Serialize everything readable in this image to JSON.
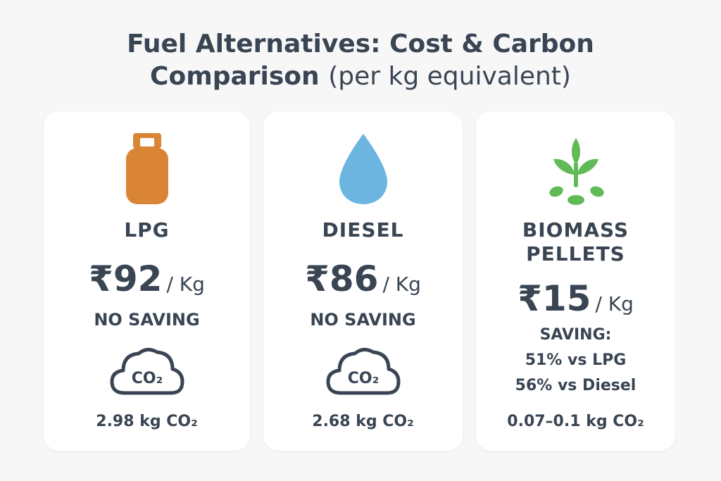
{
  "title": {
    "line1": "Fuel Alternatives: Cost & Carbon",
    "line2_bold": "Comparison",
    "line2_light": "(per kg equivalent)"
  },
  "cards": [
    {
      "name": "LPG",
      "icon": "gas-cylinder-icon",
      "icon_color": "#d98535",
      "price": "₹92",
      "unit": "/ Kg",
      "saving": [
        "NO SAVING"
      ],
      "cloud_label": "CO₂",
      "emission": "2.98 kg CO₂"
    },
    {
      "name": "DIESEL",
      "icon": "drop-icon",
      "icon_color": "#6cb5e1",
      "price": "₹86",
      "unit": "/ Kg",
      "saving": [
        "NO SAVING"
      ],
      "cloud_label": "CO₂",
      "emission": "2.68 kg CO₂"
    },
    {
      "name_lines": [
        "BIOMASS",
        "PELLETS"
      ],
      "icon": "plant-pellets-icon",
      "icon_color": "#62ba56",
      "price": "₹15",
      "unit": "/ Kg",
      "saving": [
        "SAVING:",
        "51% vs LPG",
        "56% vs Diesel"
      ],
      "emission": "0.07–0.1 kg CO₂"
    }
  ]
}
